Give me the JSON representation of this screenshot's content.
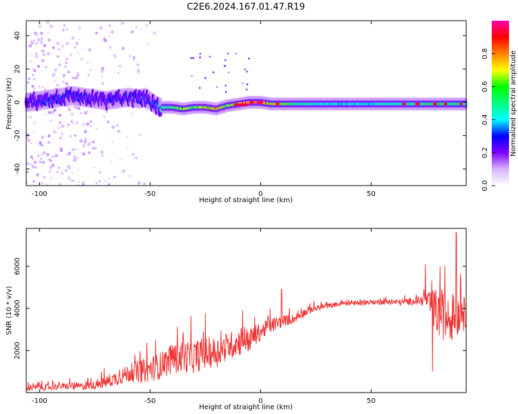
{
  "figure": {
    "title": "C2E6.2024.167.01.47.R19"
  },
  "chart_data": [
    {
      "type": "heatmap",
      "name": "spectrogram",
      "xlabel": "Height of straight line (km)",
      "ylabel": "Frequency (Hz)",
      "xlim": [
        -106,
        93
      ],
      "ylim": [
        -50,
        49
      ],
      "xticks": [
        -100,
        -50,
        0,
        50
      ],
      "yticks": [
        -40,
        -20,
        0,
        20,
        40
      ],
      "colorbar": {
        "label": "Normalized spectral amplitude",
        "range": [
          0,
          1
        ],
        "ticks": [
          0.0,
          0.2,
          0.4,
          0.6,
          0.8
        ],
        "colors": [
          "#ffffff",
          "#d9b3ff",
          "#8000ff",
          "#0000ff",
          "#00ffff",
          "#00ff80",
          "#00ff00",
          "#ffff00",
          "#ff8000",
          "#ff0000",
          "#ff00aa"
        ]
      },
      "ridge": {
        "x": [
          -106,
          -100,
          -95,
          -90,
          -85,
          -80,
          -75,
          -70,
          -65,
          -60,
          -55,
          -52,
          -50,
          -47,
          -45,
          -40,
          -35,
          -30,
          -25,
          -20,
          -15,
          -10,
          -5,
          0,
          5,
          10,
          20,
          30,
          40,
          50,
          60,
          70,
          80,
          93
        ],
        "freq": [
          0,
          1,
          2,
          3,
          4,
          3,
          2,
          1,
          2,
          3,
          2,
          3,
          1,
          -2,
          -3,
          -3,
          -4,
          -3,
          -3,
          -4,
          -2,
          -1,
          0,
          0,
          -1,
          -1,
          -1,
          -1,
          -1,
          -1,
          -1,
          -1,
          -1,
          -1
        ],
        "amplitude": [
          0.25,
          0.3,
          0.35,
          0.3,
          0.3,
          0.3,
          0.25,
          0.25,
          0.3,
          0.3,
          0.3,
          0.3,
          0.3,
          0.4,
          0.5,
          0.6,
          0.65,
          0.6,
          0.7,
          0.75,
          0.6,
          0.8,
          0.95,
          0.95,
          0.7,
          0.65,
          0.5,
          0.45,
          0.45,
          0.45,
          0.5,
          0.55,
          0.6,
          0.55
        ]
      }
    },
    {
      "type": "line",
      "name": "snr",
      "xlabel": "Height of straight line (km)",
      "ylabel": "SNR (10 * v/v)",
      "xlim": [
        -106,
        93
      ],
      "ylim": [
        0,
        7800
      ],
      "xticks": [
        -100,
        -50,
        0,
        50
      ],
      "yticks": [
        2000,
        4000,
        6000
      ],
      "color": "#ee3333",
      "x": [
        -106,
        -100,
        -95,
        -90,
        -85,
        -80,
        -75,
        -70,
        -65,
        -60,
        -55,
        -50,
        -45,
        -40,
        -35,
        -30,
        -25,
        -20,
        -15,
        -10,
        -5,
        0,
        5,
        10,
        15,
        20,
        25,
        30,
        35,
        40,
        45,
        50,
        55,
        60,
        65,
        70,
        75,
        78,
        80,
        82,
        85,
        88,
        90,
        93
      ],
      "y": [
        200,
        250,
        250,
        300,
        300,
        300,
        350,
        500,
        700,
        900,
        1000,
        1100,
        1300,
        1600,
        1700,
        1700,
        1900,
        1900,
        2200,
        2400,
        2500,
        2900,
        3200,
        3400,
        3500,
        3800,
        4000,
        4100,
        4200,
        4250,
        4250,
        4300,
        4300,
        4300,
        4300,
        4350,
        4400,
        4000,
        3800,
        3700,
        3500,
        3600,
        3800,
        3700
      ],
      "amplitude": [
        200,
        250,
        250,
        250,
        300,
        300,
        300,
        500,
        600,
        700,
        900,
        1000,
        1100,
        1200,
        1300,
        1300,
        1300,
        1200,
        1100,
        1100,
        1000,
        700,
        600,
        500,
        350,
        300,
        250,
        200,
        200,
        200,
        200,
        200,
        200,
        250,
        250,
        300,
        500,
        1500,
        2000,
        2000,
        1800,
        1800,
        1600,
        1200
      ],
      "peaks": [
        {
          "x": 9.5,
          "y": 4900
        },
        {
          "x": 74.5,
          "y": 6100
        },
        {
          "x": 81.2,
          "y": 6000
        },
        {
          "x": 88.5,
          "y": 7600
        },
        {
          "x": 77.8,
          "y": 1000
        }
      ]
    }
  ]
}
